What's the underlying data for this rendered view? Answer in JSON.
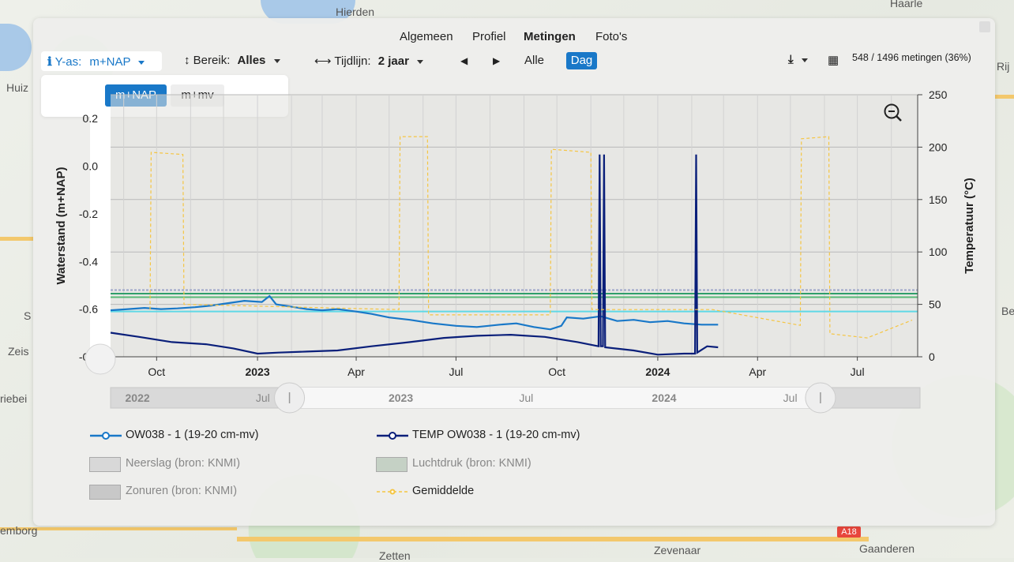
{
  "map": {
    "labels": [
      "Hierden",
      "Haarle",
      "Huiz",
      "Zeis",
      "riebei",
      "S",
      "emborg",
      "Zevenaar",
      "Gaanderen",
      "Zetten",
      "Rij",
      "Be"
    ],
    "road_badges": [
      "A18"
    ]
  },
  "nav": {
    "tabs": [
      {
        "label": "Algemeen",
        "active": false
      },
      {
        "label": "Profiel",
        "active": false
      },
      {
        "label": "Metingen",
        "active": true
      },
      {
        "label": "Foto's",
        "active": false
      }
    ]
  },
  "toolbar": {
    "yas_label": "Y-as:",
    "yas_value": "m+NAP",
    "bereik_label": "Bereik:",
    "bereik_value": "Alles",
    "tijdlijn_label": "Tijdlijn:",
    "tijdlijn_value": "2 jaar",
    "alle_label": "Alle",
    "dag_label": "Dag",
    "stats": "548 / 1496 metingen (36%)"
  },
  "yas_menu": {
    "options": [
      "m+NAP",
      "m+mv"
    ],
    "selected": "m+NAP"
  },
  "chart_data": {
    "type": "line",
    "ylabel": "Waterstand (m+NAP)",
    "y2label": "Temperatuur (°C)",
    "ylim": [
      -0.8,
      0.3
    ],
    "y2lim": [
      0,
      250
    ],
    "yticks": [
      -0.8,
      -0.6,
      -0.4,
      -0.2,
      0.0,
      0.2
    ],
    "ytick_labels": [
      "-0.8",
      "-0.6",
      "-0.4",
      "-0.2",
      "0.0",
      "0.2"
    ],
    "y2ticks": [
      0,
      50,
      100,
      150,
      200,
      250
    ],
    "xlim": [
      "2022-08-20",
      "2024-08-25"
    ],
    "xticks": [
      {
        "date": "2022-10-01",
        "label": "Oct",
        "bold": false
      },
      {
        "date": "2023-01-01",
        "label": "2023",
        "bold": true
      },
      {
        "date": "2023-04-01",
        "label": "Apr",
        "bold": false
      },
      {
        "date": "2023-07-01",
        "label": "Jul",
        "bold": false
      },
      {
        "date": "2023-10-01",
        "label": "Oct",
        "bold": false
      },
      {
        "date": "2024-01-01",
        "label": "2024",
        "bold": true
      },
      {
        "date": "2024-04-01",
        "label": "Apr",
        "bold": false
      },
      {
        "date": "2024-07-01",
        "label": "Jul",
        "bold": false
      }
    ],
    "grid": true,
    "reference_lines": [
      {
        "y": -0.52,
        "color": "#9aa3c8"
      },
      {
        "y": -0.535,
        "color": "#2f9e6a"
      },
      {
        "y": -0.55,
        "color": "#58b878"
      },
      {
        "y": -0.61,
        "color": "#5fd8e6"
      }
    ],
    "series": [
      {
        "name": "OW038 - 1 (19-20 cm-mv)",
        "axis": "left",
        "color": "#1978c8",
        "points": [
          [
            "2022-08-20",
            -0.605
          ],
          [
            "2022-09-05",
            -0.6
          ],
          [
            "2022-09-20",
            -0.595
          ],
          [
            "2022-10-05",
            -0.6
          ],
          [
            "2022-10-20",
            -0.597
          ],
          [
            "2022-11-05",
            -0.592
          ],
          [
            "2022-11-20",
            -0.585
          ],
          [
            "2022-12-05",
            -0.575
          ],
          [
            "2022-12-20",
            -0.565
          ],
          [
            "2023-01-05",
            -0.57
          ],
          [
            "2023-01-12",
            -0.545
          ],
          [
            "2023-01-18",
            -0.58
          ],
          [
            "2023-02-01",
            -0.59
          ],
          [
            "2023-02-15",
            -0.6
          ],
          [
            "2023-03-01",
            -0.605
          ],
          [
            "2023-03-15",
            -0.6
          ],
          [
            "2023-04-01",
            -0.61
          ],
          [
            "2023-04-15",
            -0.62
          ],
          [
            "2023-05-01",
            -0.635
          ],
          [
            "2023-05-20",
            -0.645
          ],
          [
            "2023-06-10",
            -0.66
          ],
          [
            "2023-07-01",
            -0.67
          ],
          [
            "2023-07-20",
            -0.675
          ],
          [
            "2023-08-10",
            -0.665
          ],
          [
            "2023-08-25",
            -0.66
          ],
          [
            "2023-09-10",
            -0.675
          ],
          [
            "2023-09-25",
            -0.685
          ],
          [
            "2023-10-05",
            -0.67
          ],
          [
            "2023-10-10",
            -0.635
          ],
          [
            "2023-10-25",
            -0.64
          ],
          [
            "2023-11-10",
            -0.63
          ],
          [
            "2023-11-25",
            -0.65
          ],
          [
            "2023-12-10",
            -0.645
          ],
          [
            "2023-12-25",
            -0.655
          ],
          [
            "2024-01-10",
            -0.65
          ],
          [
            "2024-01-25",
            -0.66
          ],
          [
            "2024-02-10",
            -0.665
          ],
          [
            "2024-02-25",
            -0.665
          ]
        ]
      },
      {
        "name": "TEMP OW038 - 1 (19-20 cm-mv)",
        "axis": "right",
        "color": "#0a1f7a",
        "points": [
          [
            "2022-08-20",
            23
          ],
          [
            "2022-09-15",
            19
          ],
          [
            "2022-10-15",
            14
          ],
          [
            "2022-11-15",
            12
          ],
          [
            "2022-12-10",
            8
          ],
          [
            "2023-01-01",
            3
          ],
          [
            "2023-01-20",
            4
          ],
          [
            "2023-02-15",
            5
          ],
          [
            "2023-03-15",
            6
          ],
          [
            "2023-04-15",
            10
          ],
          [
            "2023-05-20",
            14
          ],
          [
            "2023-06-20",
            18
          ],
          [
            "2023-07-20",
            20
          ],
          [
            "2023-08-20",
            21
          ],
          [
            "2023-09-20",
            19
          ],
          [
            "2023-10-20",
            14
          ],
          [
            "2023-11-08",
            10
          ],
          [
            "2023-11-09",
            193
          ],
          [
            "2023-11-10",
            10
          ],
          [
            "2023-11-12",
            10
          ],
          [
            "2023-11-13",
            193
          ],
          [
            "2023-11-14",
            9
          ],
          [
            "2023-12-10",
            6
          ],
          [
            "2024-01-01",
            2
          ],
          [
            "2024-01-25",
            3
          ],
          [
            "2024-02-04",
            3
          ],
          [
            "2024-02-05",
            193
          ],
          [
            "2024-02-06",
            4
          ],
          [
            "2024-02-15",
            10
          ],
          [
            "2024-02-25",
            9
          ]
        ]
      },
      {
        "name": "Gemiddelde",
        "axis": "right",
        "color": "#f5c542",
        "points": [
          [
            "2022-09-25",
            45
          ],
          [
            "2022-09-26",
            195
          ],
          [
            "2022-10-25",
            193
          ],
          [
            "2022-10-26",
            50
          ],
          [
            "2023-05-10",
            45
          ],
          [
            "2023-05-11",
            210
          ],
          [
            "2023-06-05",
            210
          ],
          [
            "2023-06-06",
            40
          ],
          [
            "2023-09-25",
            40
          ],
          [
            "2023-09-26",
            198
          ],
          [
            "2023-11-01",
            195
          ],
          [
            "2023-11-02",
            45
          ],
          [
            "2024-02-20",
            45
          ],
          [
            "2024-05-10",
            30
          ],
          [
            "2024-05-11",
            208
          ],
          [
            "2024-06-05",
            210
          ],
          [
            "2024-06-06",
            22
          ],
          [
            "2024-07-10",
            18
          ],
          [
            "2024-08-20",
            35
          ]
        ]
      }
    ],
    "legend": [
      {
        "name": "OW038 - 1 (19-20 cm-mv)",
        "style": "line-marker",
        "color": "#1978c8",
        "muted": false
      },
      {
        "name": "TEMP OW038 - 1 (19-20 cm-mv)",
        "style": "line-marker",
        "color": "#0a1f7a",
        "muted": false
      },
      {
        "name": "Neerslag (bron: KNMI)",
        "style": "box",
        "color": "#d8d8d8",
        "muted": true
      },
      {
        "name": "Luchtdruk (bron: KNMI)",
        "style": "box",
        "color": "#c5d1c5",
        "muted": true
      },
      {
        "name": "Zonuren (bron: KNMI)",
        "style": "box",
        "color": "#c8c8c8",
        "muted": true
      },
      {
        "name": "Gemiddelde",
        "style": "dash-marker",
        "color": "#f5c542",
        "muted": false
      }
    ],
    "navigator": {
      "labels": [
        {
          "date": "2022-01-01",
          "label": "2022",
          "bold": true
        },
        {
          "date": "2022-07-01",
          "label": "Jul",
          "bold": false
        },
        {
          "date": "2023-01-01",
          "label": "2023",
          "bold": true
        },
        {
          "date": "2023-07-01",
          "label": "Jul",
          "bold": false
        },
        {
          "date": "2024-01-01",
          "label": "2024",
          "bold": true
        },
        {
          "date": "2024-07-01",
          "label": "Jul",
          "bold": false
        }
      ],
      "range": [
        "2021-12-15",
        "2025-01-10"
      ],
      "selected": [
        "2022-08-20",
        "2024-08-25"
      ]
    }
  }
}
